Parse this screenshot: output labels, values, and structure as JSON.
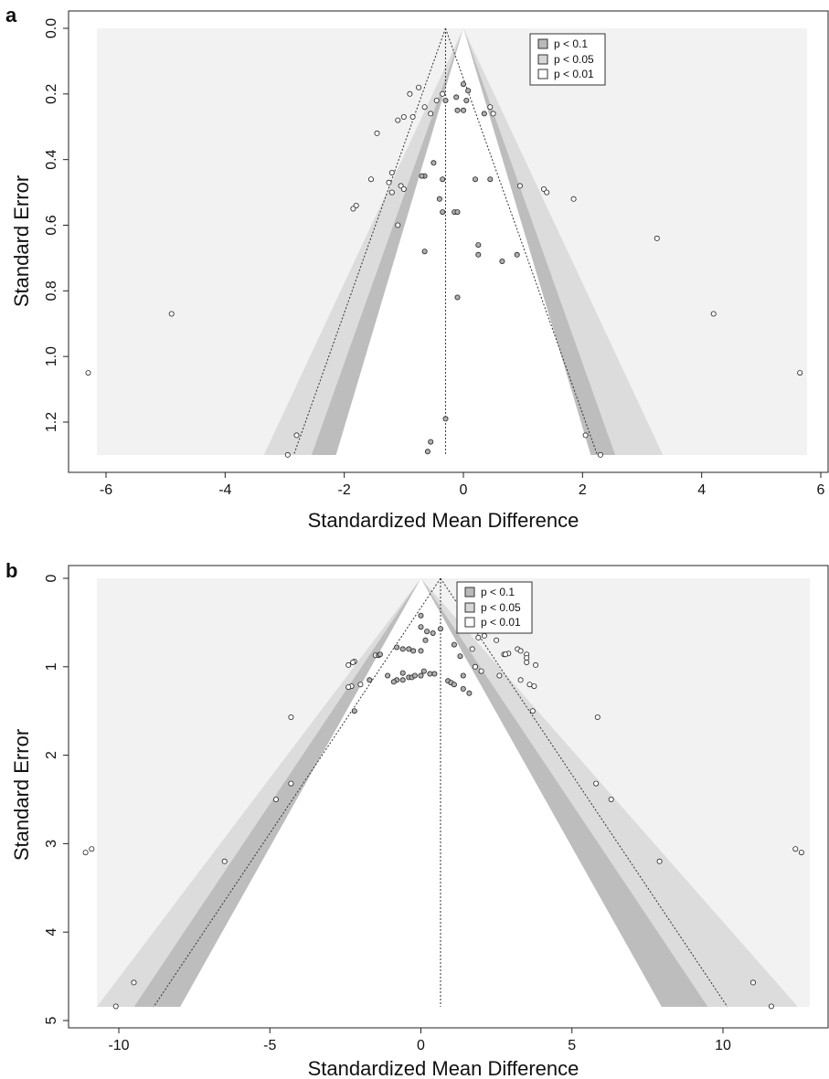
{
  "colors": {
    "background": "#f2f2f2",
    "p_lt_0_1": "#b9b9b9",
    "p_lt_0_05": "#d6d6d6",
    "p_lt_0_01": "#ffffff",
    "point_fill_inside": "#b0b0b0",
    "point_fill_outside": "#ffffff",
    "point_stroke": "#222222"
  },
  "chart_data": [
    {
      "panel_label": "a",
      "type": "scatter",
      "subtype": "contour-enhanced funnel plot",
      "xlabel": "Standardized Mean Difference",
      "ylabel": "Standard Error",
      "xlim": [
        -6.5,
        6.1
      ],
      "ylim": [
        0,
        1.3
      ],
      "y_reversed": true,
      "x_ticks": [
        "-6",
        "-4",
        "-2",
        "0",
        "2",
        "4",
        "6"
      ],
      "y_ticks": [
        "0.0",
        "0.2",
        "0.4",
        "0.6",
        "0.8",
        "1.0",
        "1.2"
      ],
      "grid": false,
      "legend_position": "top-right",
      "legend": [
        {
          "label": "p < 0.1",
          "color_key": "p_lt_0_1"
        },
        {
          "label": "p < 0.05",
          "color_key": "p_lt_0_05"
        },
        {
          "label": "p < 0.01",
          "color_key": "p_lt_0_01"
        }
      ],
      "pooled_estimate": -0.3,
      "points": [
        [
          -0.75,
          0.18
        ],
        [
          -0.9,
          0.2
        ],
        [
          -0.35,
          0.2
        ],
        [
          -0.12,
          0.21
        ],
        [
          0.0,
          0.17
        ],
        [
          0.08,
          0.19
        ],
        [
          0.05,
          0.22
        ],
        [
          -0.45,
          0.22
        ],
        [
          -0.3,
          0.22
        ],
        [
          -0.65,
          0.24
        ],
        [
          -0.55,
          0.26
        ],
        [
          -0.1,
          0.25
        ],
        [
          0.0,
          0.25
        ],
        [
          0.35,
          0.26
        ],
        [
          0.45,
          0.24
        ],
        [
          0.5,
          0.26
        ],
        [
          -0.85,
          0.27
        ],
        [
          -1.0,
          0.27
        ],
        [
          -1.1,
          0.28
        ],
        [
          -1.45,
          0.32
        ],
        [
          -0.5,
          0.41
        ],
        [
          -1.2,
          0.44
        ],
        [
          -0.65,
          0.45
        ],
        [
          -0.7,
          0.45
        ],
        [
          -0.35,
          0.46
        ],
        [
          0.2,
          0.46
        ],
        [
          0.45,
          0.46
        ],
        [
          -1.55,
          0.46
        ],
        [
          -1.25,
          0.47
        ],
        [
          -1.05,
          0.48
        ],
        [
          -1.0,
          0.49
        ],
        [
          0.95,
          0.48
        ],
        [
          1.35,
          0.49
        ],
        [
          1.4,
          0.5
        ],
        [
          -1.2,
          0.5
        ],
        [
          1.85,
          0.52
        ],
        [
          -0.4,
          0.52
        ],
        [
          -1.8,
          0.54
        ],
        [
          -1.85,
          0.55
        ],
        [
          -0.15,
          0.56
        ],
        [
          -0.35,
          0.56
        ],
        [
          -0.1,
          0.56
        ],
        [
          -1.1,
          0.6
        ],
        [
          3.25,
          0.64
        ],
        [
          0.25,
          0.66
        ],
        [
          -0.65,
          0.68
        ],
        [
          0.25,
          0.69
        ],
        [
          0.9,
          0.69
        ],
        [
          0.65,
          0.71
        ],
        [
          -0.1,
          0.82
        ],
        [
          -4.9,
          0.87
        ],
        [
          4.2,
          0.87
        ],
        [
          -6.3,
          1.05
        ],
        [
          5.65,
          1.05
        ],
        [
          -0.3,
          1.19
        ],
        [
          -0.55,
          1.26
        ],
        [
          -0.6,
          1.29
        ],
        [
          -2.8,
          1.24
        ],
        [
          2.05,
          1.24
        ],
        [
          -2.95,
          1.3
        ],
        [
          2.3,
          1.3
        ]
      ]
    },
    {
      "panel_label": "b",
      "type": "scatter",
      "subtype": "contour-enhanced funnel plot",
      "xlabel": "Standardized Mean Difference",
      "ylabel": "Standard Error",
      "xlim": [
        -11.8,
        13.2
      ],
      "ylim": [
        0,
        4.85
      ],
      "y_reversed": true,
      "x_ticks": [
        "-10",
        "-5",
        "0",
        "5",
        "10"
      ],
      "y_ticks": [
        "0",
        "1",
        "2",
        "3",
        "4",
        "5"
      ],
      "grid": false,
      "legend_position": "top-center",
      "legend": [
        {
          "label": "p < 0.1",
          "color_key": "p_lt_0_1"
        },
        {
          "label": "p < 0.05",
          "color_key": "p_lt_0_05"
        },
        {
          "label": "p < 0.01",
          "color_key": "p_lt_0_01"
        }
      ],
      "pooled_estimate": 0.65,
      "points": [
        [
          0.0,
          0.42
        ],
        [
          0.0,
          0.55
        ],
        [
          0.2,
          0.6
        ],
        [
          0.4,
          0.62
        ],
        [
          0.65,
          0.57
        ],
        [
          0.15,
          0.7
        ],
        [
          1.9,
          0.67
        ],
        [
          2.1,
          0.65
        ],
        [
          2.5,
          0.7
        ],
        [
          1.1,
          0.75
        ],
        [
          1.7,
          0.8
        ],
        [
          3.2,
          0.8
        ],
        [
          3.3,
          0.82
        ],
        [
          2.9,
          0.85
        ],
        [
          2.75,
          0.86
        ],
        [
          2.8,
          0.86
        ],
        [
          3.5,
          0.86
        ],
        [
          3.5,
          0.9
        ],
        [
          3.5,
          0.95
        ],
        [
          3.8,
          0.98
        ],
        [
          -0.6,
          0.8
        ],
        [
          -0.4,
          0.8
        ],
        [
          -0.8,
          0.78
        ],
        [
          -0.25,
          0.82
        ],
        [
          -1.5,
          0.87
        ],
        [
          -1.4,
          0.87
        ],
        [
          -1.35,
          0.86
        ],
        [
          -2.2,
          0.94
        ],
        [
          -2.25,
          0.95
        ],
        [
          -2.4,
          0.98
        ],
        [
          0.0,
          0.82
        ],
        [
          1.3,
          0.88
        ],
        [
          2.0,
          1.05
        ],
        [
          1.8,
          1.0
        ],
        [
          2.6,
          1.1
        ],
        [
          3.3,
          1.15
        ],
        [
          3.6,
          1.2
        ],
        [
          3.75,
          1.22
        ],
        [
          -1.7,
          1.15
        ],
        [
          -1.1,
          1.1
        ],
        [
          -0.6,
          1.07
        ],
        [
          -0.4,
          1.12
        ],
        [
          -0.3,
          1.12
        ],
        [
          -0.2,
          1.1
        ],
        [
          0.0,
          1.1
        ],
        [
          0.1,
          1.05
        ],
        [
          0.3,
          1.08
        ],
        [
          0.45,
          1.08
        ],
        [
          0.9,
          1.16
        ],
        [
          1.0,
          1.18
        ],
        [
          1.1,
          1.2
        ],
        [
          1.4,
          1.1
        ],
        [
          1.4,
          1.25
        ],
        [
          1.6,
          1.3
        ],
        [
          -0.6,
          1.15
        ],
        [
          -0.8,
          1.15
        ],
        [
          -0.9,
          1.17
        ],
        [
          -2.0,
          1.2
        ],
        [
          -2.3,
          1.22
        ],
        [
          -2.4,
          1.23
        ],
        [
          -2.2,
          1.5
        ],
        [
          3.7,
          1.5
        ],
        [
          -4.3,
          1.57
        ],
        [
          5.85,
          1.57
        ],
        [
          -4.3,
          2.32
        ],
        [
          5.8,
          2.32
        ],
        [
          -4.8,
          2.5
        ],
        [
          6.3,
          2.5
        ],
        [
          -6.5,
          3.2
        ],
        [
          7.9,
          3.2
        ],
        [
          -11.1,
          3.1
        ],
        [
          -10.9,
          3.06
        ],
        [
          12.4,
          3.06
        ],
        [
          12.6,
          3.1
        ],
        [
          -9.5,
          4.57
        ],
        [
          11.0,
          4.57
        ],
        [
          -10.1,
          4.84
        ],
        [
          11.6,
          4.84
        ]
      ]
    }
  ]
}
